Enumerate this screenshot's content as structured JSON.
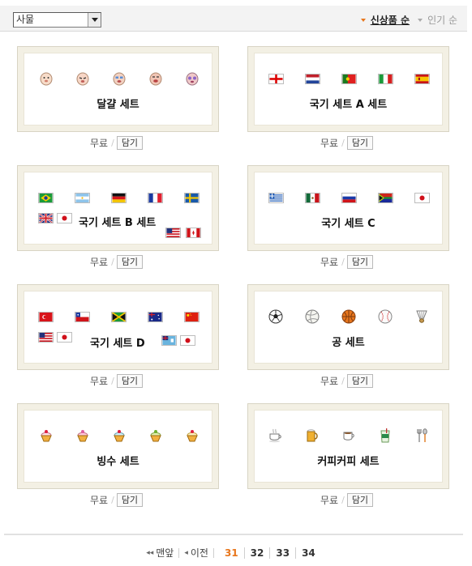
{
  "filter": {
    "selected": "사물"
  },
  "sort": {
    "new": "신상품 순",
    "popular": "인기 순"
  },
  "sets": [
    {
      "title": "달걀 세트",
      "icons": [
        "egg-face-icon",
        "egg-face-icon",
        "egg-face-icon",
        "egg-face-icon",
        "egg-face-icon"
      ]
    },
    {
      "title": "국기 세트 A 세트",
      "icons": [
        "england-flag-icon",
        "netherlands-flag-icon",
        "portugal-flag-icon",
        "italy-flag-icon",
        "spain-flag-icon"
      ]
    },
    {
      "title": "국기 세트 B 세트",
      "icons": [
        "brazil-flag-icon",
        "argentina-flag-icon",
        "germany-flag-icon",
        "france-flag-icon",
        "sweden-flag-icon",
        "uk-flag-icon",
        "japan-flag-icon",
        "usa-flag-icon",
        "canada-flag-icon"
      ]
    },
    {
      "title": "국기 세트 C",
      "icons": [
        "greece-flag-icon",
        "mexico-flag-icon",
        "russia-flag-icon",
        "south-africa-flag-icon",
        "japan-flag-icon"
      ]
    },
    {
      "title": "국기 세트 D",
      "icons": [
        "turkey-flag-icon",
        "chile-flag-icon",
        "jamaica-flag-icon",
        "australia-flag-icon",
        "china-flag-icon",
        "usa-flag-icon",
        "japan-flag-icon",
        "fiji-flag-icon",
        "japan-flag-icon"
      ]
    },
    {
      "title": "공 세트",
      "icons": [
        "soccer-ball-icon",
        "volleyball-icon",
        "basketball-icon",
        "baseball-icon",
        "shuttlecock-icon"
      ]
    },
    {
      "title": "빙수 세트",
      "icons": [
        "bingsu-icon",
        "bingsu-icon",
        "bingsu-icon",
        "bingsu-icon",
        "bingsu-icon"
      ]
    },
    {
      "title": "커피커피 세트",
      "icons": [
        "coffee-cup-icon",
        "beer-mug-icon",
        "tea-cup-icon",
        "iced-drink-icon",
        "fork-spoon-icon"
      ]
    }
  ],
  "item_price": "무료",
  "item_button": "담기",
  "pagination": {
    "first": "맨앞",
    "prev": "이전",
    "pages": [
      "31",
      "32",
      "33",
      "34"
    ],
    "current": "31"
  },
  "colors": {
    "accent": "#e8761c"
  }
}
